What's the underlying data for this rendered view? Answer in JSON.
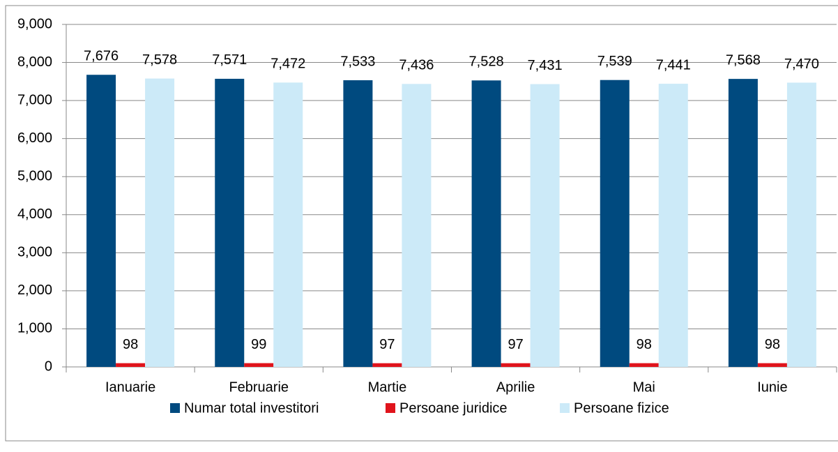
{
  "chart_data": {
    "type": "bar",
    "categories": [
      "Ianuarie",
      "Februarie",
      "Martie",
      "Aprilie",
      "Mai",
      "Iunie"
    ],
    "series": [
      {
        "name": "Numar total investitori",
        "color": "#004a7f",
        "values": [
          7676,
          7571,
          7533,
          7528,
          7539,
          7568
        ],
        "value_labels": [
          "7,676",
          "7,571",
          "7,533",
          "7,528",
          "7,539",
          "7,568"
        ]
      },
      {
        "name": "Persoane juridice",
        "color": "#e0141c",
        "values": [
          98,
          99,
          97,
          97,
          98,
          98
        ]
      },
      {
        "name": "Persoane fizice",
        "color": "#cceaf8",
        "values": [
          7578,
          7472,
          7436,
          7431,
          7441,
          7470
        ],
        "value_labels": [
          "7,578",
          "7,472",
          "7,436",
          "7,431",
          "7,441",
          "7,470"
        ]
      }
    ],
    "ylim": [
      0,
      9000
    ],
    "yticks": [
      0,
      {
        "value": 1000,
        "label": "1,000"
      },
      {
        "value": 2000,
        "label": "2,000"
      },
      {
        "value": 3000,
        "label": "3,000"
      },
      {
        "value": 4000,
        "label": "4,000"
      },
      {
        "value": 5000,
        "label": "5,000"
      },
      {
        "value": 6000,
        "label": "6,000"
      },
      {
        "value": 7000,
        "label": "7,000"
      },
      {
        "value": 8000,
        "label": "8,000"
      },
      {
        "value": 9000,
        "label": "9,000"
      }
    ],
    "grid": true,
    "legend": "bottom"
  }
}
